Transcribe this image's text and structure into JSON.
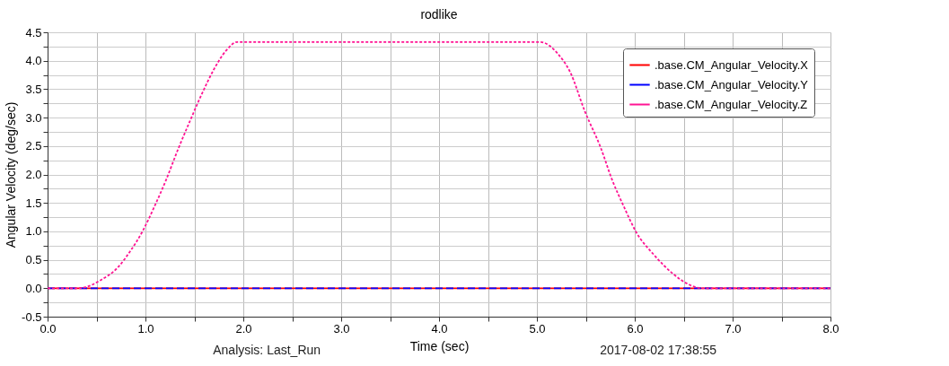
{
  "chart_data": {
    "type": "line",
    "title": "rodlike",
    "xlabel": "Time (sec)",
    "ylabel": "Angular Velocity (deg/sec)",
    "annotations": [
      "Analysis:  Last_Run",
      "2017-08-02 17:38:55"
    ],
    "series": [
      {
        "name": ".base.CM_Angular_Velocity.X",
        "color": "#ff0000",
        "line_style": "solid",
        "x": [
          0,
          8
        ],
        "values": [
          0,
          0
        ]
      },
      {
        "name": ".base.CM_Angular_Velocity.Y",
        "color": "#0000ff",
        "line_style": "dashed",
        "x": [
          0,
          8
        ],
        "values": [
          0,
          0
        ]
      },
      {
        "name": ".base.CM_Angular_Velocity.Z",
        "color": "#ff1493",
        "line_style": "dotted",
        "x": [
          0,
          0.3,
          0.39,
          0.54,
          0.72,
          0.84,
          0.97,
          1.09,
          1.21,
          1.33,
          1.46,
          1.58,
          1.7,
          1.82,
          1.94,
          5.03,
          5.22,
          5.34,
          5.49,
          5.65,
          5.77,
          5.89,
          6.01,
          6.2,
          6.38,
          6.56,
          6.69,
          8
        ],
        "values": [
          0,
          0,
          0.02,
          0.14,
          0.37,
          0.64,
          1.0,
          1.43,
          1.9,
          2.43,
          2.96,
          3.43,
          3.85,
          4.17,
          4.33,
          4.33,
          4.11,
          3.8,
          3.11,
          2.48,
          1.9,
          1.43,
          1.0,
          0.58,
          0.27,
          0.06,
          0,
          0
        ]
      }
    ],
    "xlim": [
      0,
      8
    ],
    "xticks": [
      {
        "value": 0,
        "label": "0.0"
      },
      {
        "value": 0.5,
        "label": null
      },
      {
        "value": 1,
        "label": "1.0"
      },
      {
        "value": 1.5,
        "label": null
      },
      {
        "value": 2,
        "label": "2.0"
      },
      {
        "value": 2.5,
        "label": null
      },
      {
        "value": 3,
        "label": "3.0"
      },
      {
        "value": 3.5,
        "label": null
      },
      {
        "value": 4,
        "label": "4.0"
      },
      {
        "value": 4.5,
        "label": null
      },
      {
        "value": 5,
        "label": "5.0"
      },
      {
        "value": 5.5,
        "label": null
      },
      {
        "value": 6,
        "label": "6.0"
      },
      {
        "value": 6.5,
        "label": null
      },
      {
        "value": 7,
        "label": "7.0"
      },
      {
        "value": 7.5,
        "label": null
      },
      {
        "value": 8,
        "label": "8.0"
      }
    ],
    "ylim": [
      -0.5,
      4.5
    ],
    "yticks": [
      {
        "value": -0.5,
        "label": "-0.5"
      },
      {
        "value": -0.25,
        "label": null
      },
      {
        "value": 0,
        "label": "0.0"
      },
      {
        "value": 0.25,
        "label": null
      },
      0.5,
      {
        "value": 0.75,
        "label": null
      },
      {
        "value": 1,
        "label": "1.0"
      },
      {
        "value": 1.25,
        "label": null
      },
      1.5,
      {
        "value": 1.75,
        "label": null
      },
      {
        "value": 2,
        "label": "2.0"
      },
      {
        "value": 2.25,
        "label": null
      },
      2.5,
      {
        "value": 2.75,
        "label": null
      },
      {
        "value": 3,
        "label": "3.0"
      },
      {
        "value": 3.25,
        "label": null
      },
      3.5,
      {
        "value": 3.75,
        "label": null
      },
      {
        "value": 4,
        "label": "4.0"
      },
      {
        "value": 4.25,
        "label": null
      },
      4.5
    ],
    "grid": true,
    "legend": "top right",
    "marker": "none"
  }
}
